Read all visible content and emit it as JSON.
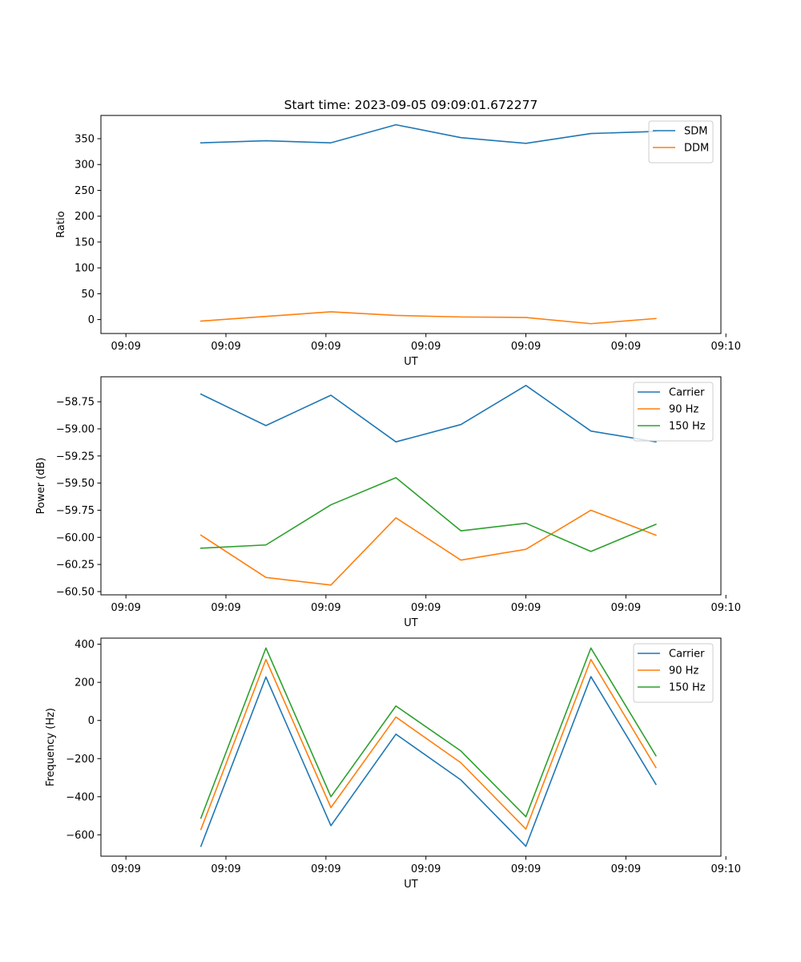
{
  "chart_data": [
    {
      "type": "line",
      "title": "Start time: 2023-09-05 09:09:01.672277",
      "xlabel": "UT",
      "ylabel": "Ratio",
      "x": [
        0.75,
        1.4,
        2.05,
        2.7,
        3.35,
        4.0,
        4.65,
        5.3
      ],
      "xlim": [
        -0.25,
        5.95
      ],
      "xticks": [
        0,
        1,
        2,
        3,
        4,
        5,
        6
      ],
      "xtick_labels": [
        "09:09",
        "09:09",
        "09:09",
        "09:09",
        "09:09",
        "09:09",
        "09:10"
      ],
      "ylim": [
        -27,
        395
      ],
      "yticks": [
        0,
        50,
        100,
        150,
        200,
        250,
        300,
        350
      ],
      "ytick_labels": [
        "0",
        "50",
        "100",
        "150",
        "200",
        "250",
        "300",
        "350"
      ],
      "legend_position": "top-right",
      "series": [
        {
          "name": "SDM",
          "color": "#1f77b4",
          "values": [
            342,
            346,
            342,
            377,
            352,
            341,
            360,
            364
          ]
        },
        {
          "name": "DDM",
          "color": "#ff7f0e",
          "values": [
            -3,
            6,
            15,
            8,
            5,
            4,
            -8,
            2
          ]
        }
      ]
    },
    {
      "type": "line",
      "title": "",
      "xlabel": "UT",
      "ylabel": "Power (dB)",
      "x": [
        0.75,
        1.4,
        2.05,
        2.7,
        3.35,
        4.0,
        4.65,
        5.3
      ],
      "xlim": [
        -0.25,
        5.95
      ],
      "xticks": [
        0,
        1,
        2,
        3,
        4,
        5,
        6
      ],
      "xtick_labels": [
        "09:09",
        "09:09",
        "09:09",
        "09:09",
        "09:09",
        "09:09",
        "09:10"
      ],
      "ylim": [
        -60.53,
        -58.52
      ],
      "yticks": [
        -60.5,
        -60.25,
        -60.0,
        -59.75,
        -59.5,
        -59.25,
        -59.0,
        -58.75
      ],
      "ytick_labels": [
        "−60.50",
        "−60.25",
        "−60.00",
        "−59.75",
        "−59.50",
        "−59.25",
        "−59.00",
        "−58.75"
      ],
      "legend_position": "top-right",
      "series": [
        {
          "name": "Carrier",
          "color": "#1f77b4",
          "values": [
            -58.68,
            -58.97,
            -58.69,
            -59.12,
            -58.96,
            -58.6,
            -59.02,
            -59.12
          ]
        },
        {
          "name": "90 Hz",
          "color": "#ff7f0e",
          "values": [
            -59.98,
            -60.37,
            -60.44,
            -59.82,
            -60.21,
            -60.11,
            -59.75,
            -59.98
          ]
        },
        {
          "name": "150 Hz",
          "color": "#2ca02c",
          "values": [
            -60.1,
            -60.07,
            -59.7,
            -59.45,
            -59.94,
            -59.87,
            -60.13,
            -59.88
          ]
        }
      ]
    },
    {
      "type": "line",
      "title": "",
      "xlabel": "UT",
      "ylabel": "Frequency (Hz)",
      "x": [
        0.75,
        1.4,
        2.05,
        2.7,
        3.35,
        4.0,
        4.65,
        5.3
      ],
      "xlim": [
        -0.25,
        5.95
      ],
      "xticks": [
        0,
        1,
        2,
        3,
        4,
        5,
        6
      ],
      "xtick_labels": [
        "09:09",
        "09:09",
        "09:09",
        "09:09",
        "09:09",
        "09:09",
        "09:10"
      ],
      "ylim": [
        -712,
        432
      ],
      "yticks": [
        -600,
        -400,
        -200,
        0,
        200,
        400
      ],
      "ytick_labels": [
        "−600",
        "−400",
        "−200",
        "0",
        "200",
        "400"
      ],
      "legend_position": "top-right",
      "series": [
        {
          "name": "Carrier",
          "color": "#1f77b4",
          "values": [
            -660,
            228,
            -552,
            -72,
            -312,
            -660,
            230,
            -335
          ]
        },
        {
          "name": "90 Hz",
          "color": "#ff7f0e",
          "values": [
            -572,
            320,
            -457,
            18,
            -222,
            -570,
            320,
            -247
          ]
        },
        {
          "name": "150 Hz",
          "color": "#2ca02c",
          "values": [
            -512,
            380,
            -400,
            76,
            -160,
            -505,
            380,
            -185
          ]
        }
      ]
    }
  ]
}
